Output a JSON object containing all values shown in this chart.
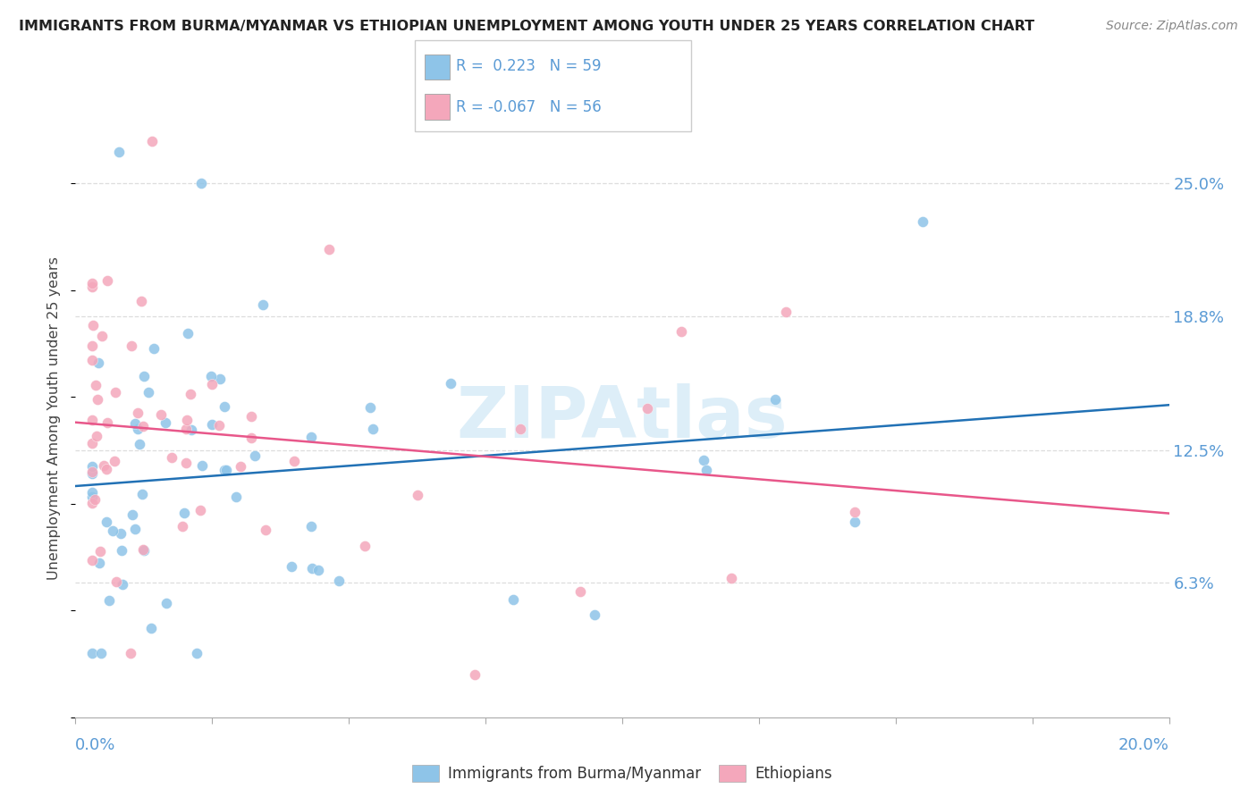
{
  "title": "IMMIGRANTS FROM BURMA/MYANMAR VS ETHIOPIAN UNEMPLOYMENT AMONG YOUTH UNDER 25 YEARS CORRELATION CHART",
  "source": "Source: ZipAtlas.com",
  "ylabel": "Unemployment Among Youth under 25 years",
  "xlim": [
    0.0,
    0.2
  ],
  "ylim": [
    0.0,
    0.28
  ],
  "yticks": [
    0.063,
    0.125,
    0.188,
    0.25
  ],
  "ytick_labels": [
    "6.3%",
    "12.5%",
    "18.8%",
    "25.0%"
  ],
  "legend_blue_r": "0.223",
  "legend_blue_n": "59",
  "legend_pink_r": "-0.067",
  "legend_pink_n": "56",
  "blue_color": "#8ec4e8",
  "pink_color": "#f4a7bb",
  "blue_line_color": "#2171b5",
  "pink_line_color": "#e8578a",
  "watermark_color": "#ddeef8",
  "axis_label_color": "#5b9bd5",
  "title_color": "#222222",
  "source_color": "#888888",
  "grid_color": "#dddddd",
  "R_blue": 0.223,
  "R_pink": -0.067
}
